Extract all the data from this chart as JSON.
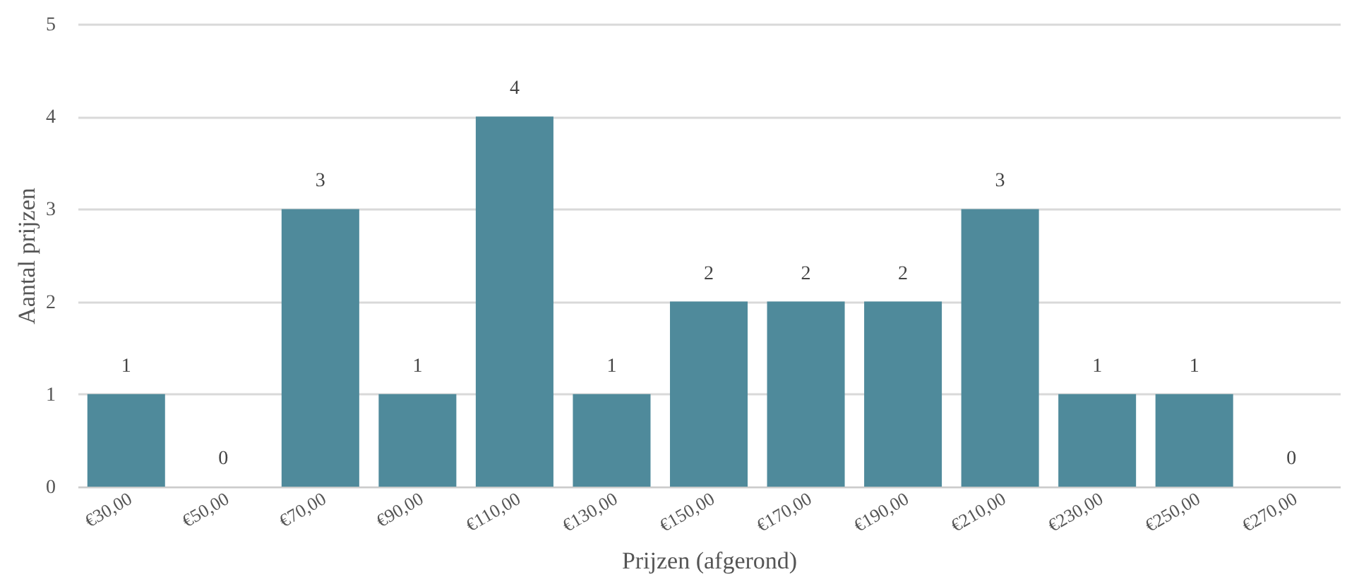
{
  "chart_data": {
    "type": "bar",
    "xlabel": "Prijzen (afgerond)",
    "ylabel": "Aantal prijzen",
    "categories": [
      "€30,00",
      "€50,00",
      "€70,00",
      "€90,00",
      "€110,00",
      "€130,00",
      "€150,00",
      "€170,00",
      "€190,00",
      "€210,00",
      "€230,00",
      "€250,00",
      "€270,00"
    ],
    "values": [
      1,
      0,
      3,
      1,
      4,
      1,
      2,
      2,
      2,
      3,
      1,
      1,
      0
    ],
    "color": "#4f8a9b",
    "ylim": [
      0,
      5
    ],
    "yticks": [
      0,
      1,
      2,
      3,
      4,
      5
    ],
    "grid": "y",
    "data_labels": true
  }
}
